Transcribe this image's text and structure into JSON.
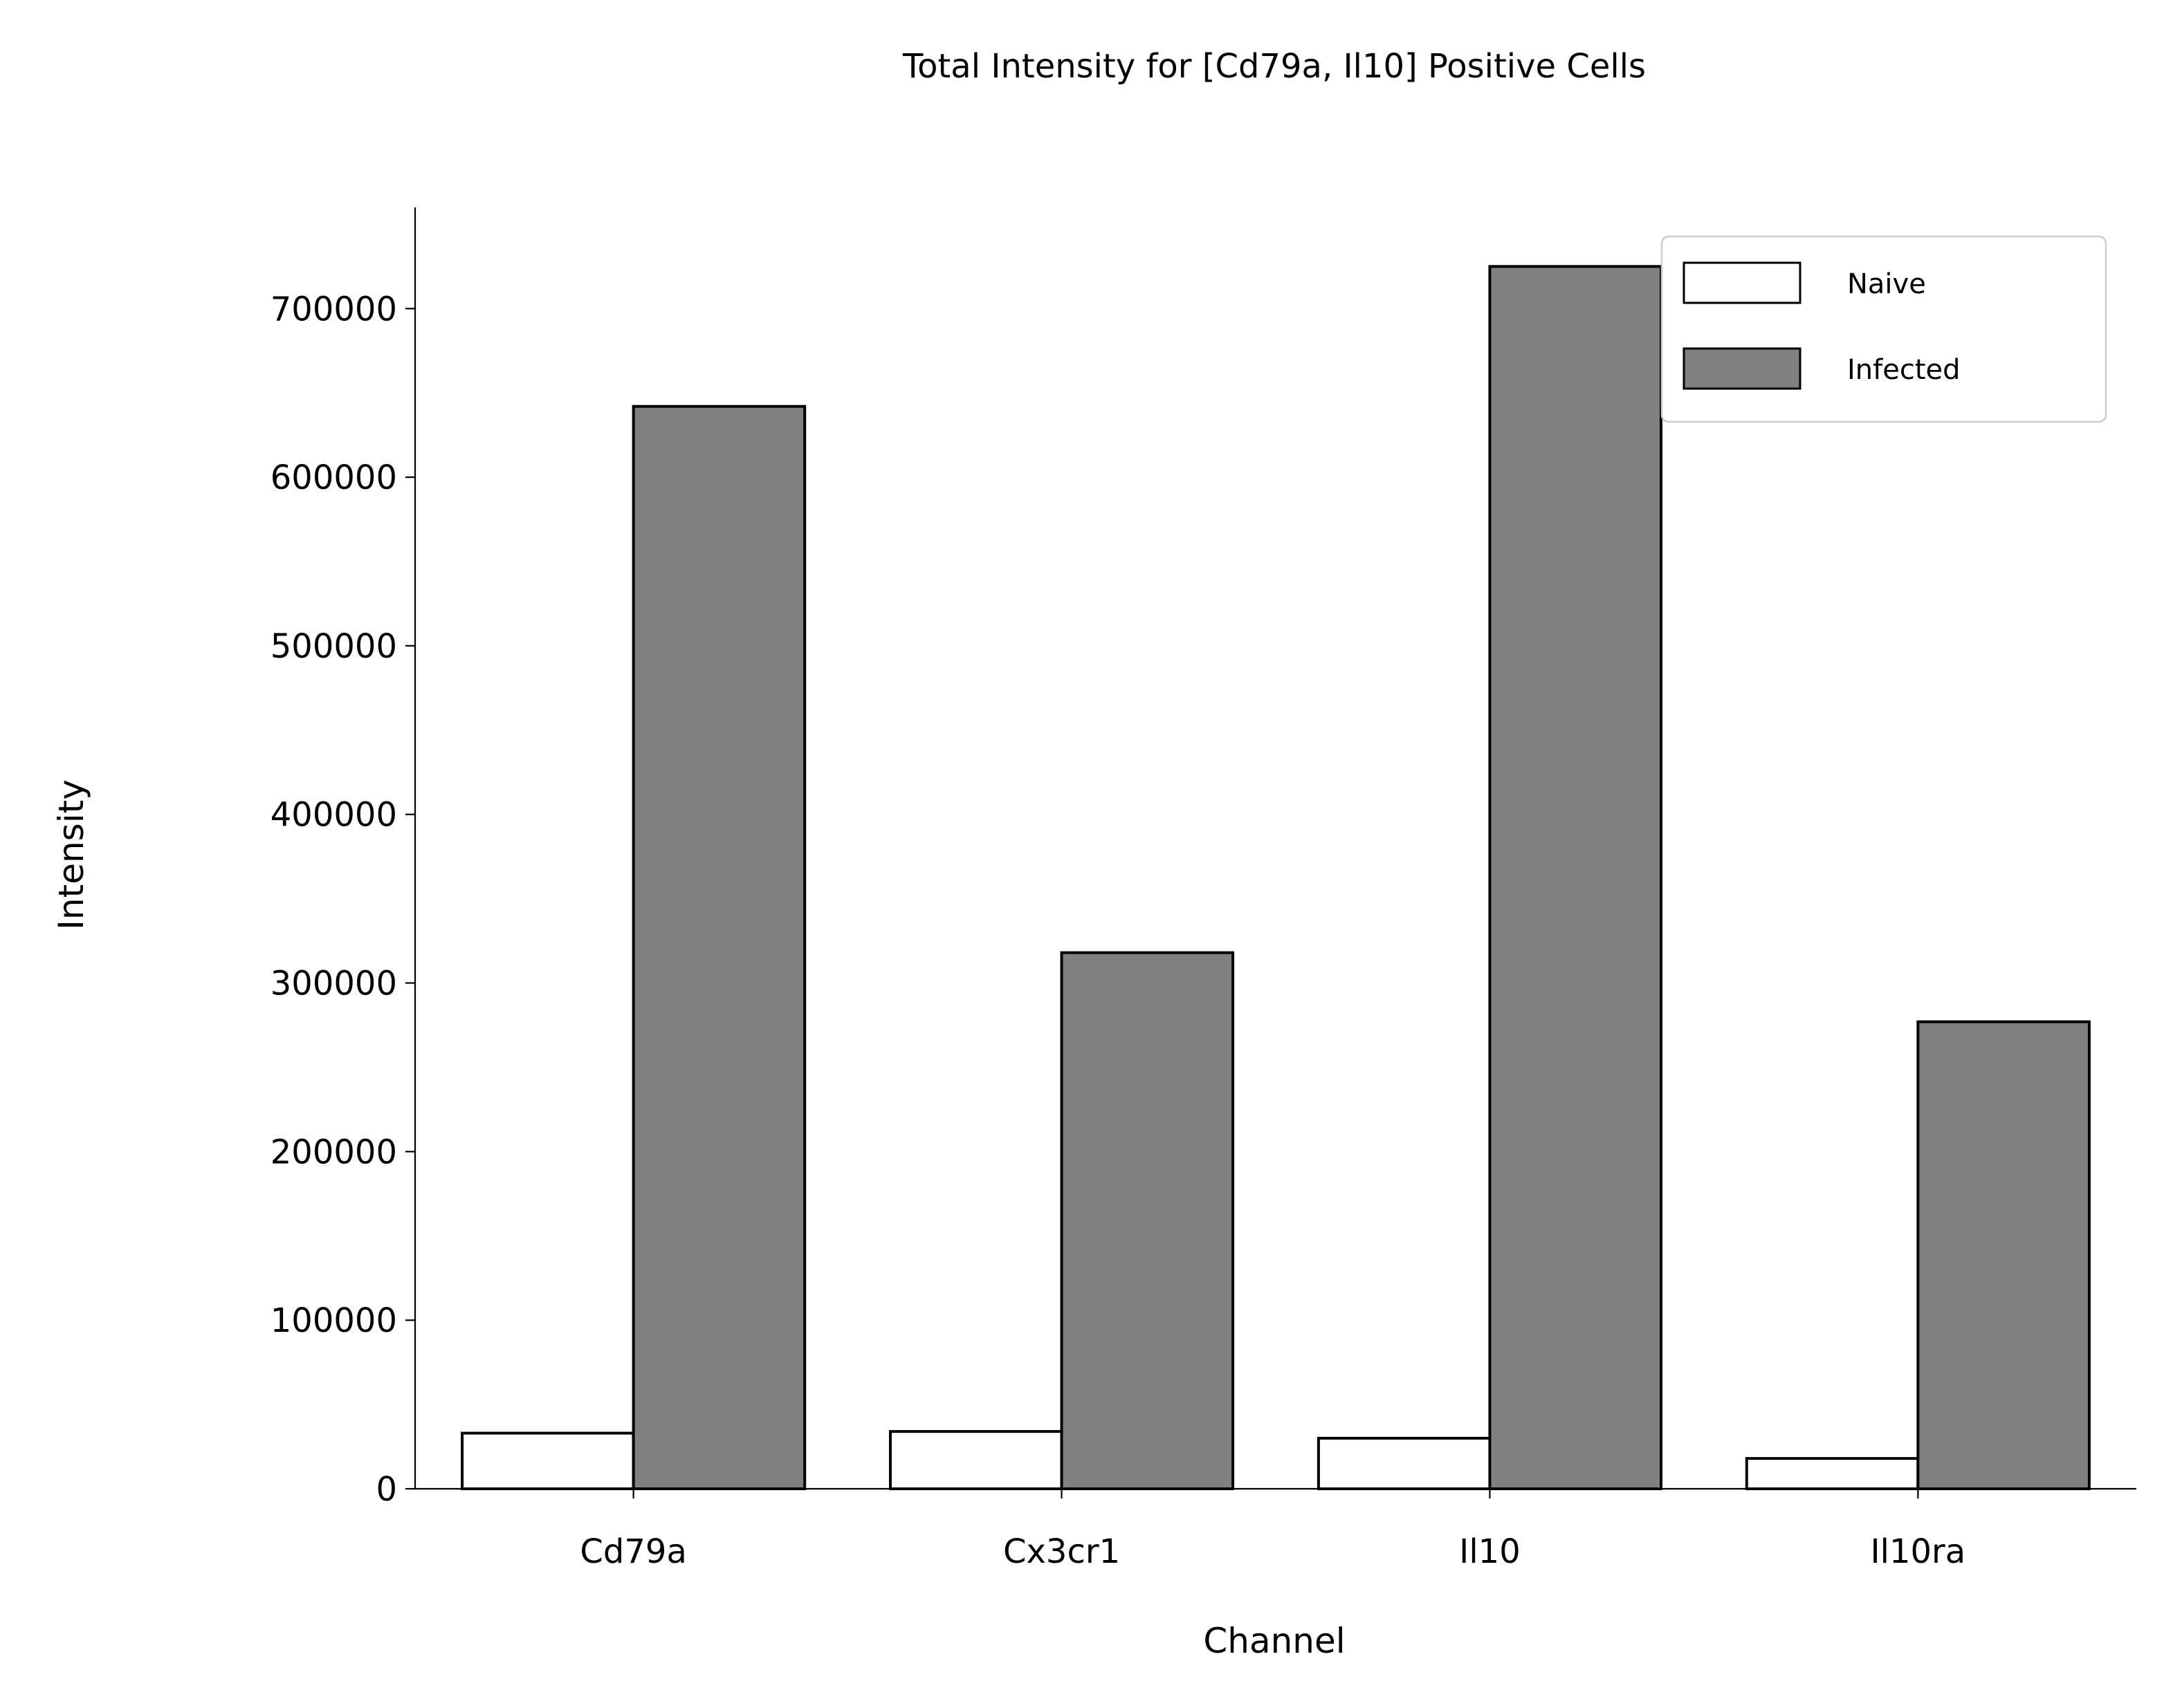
{
  "chart_data": {
    "type": "bar",
    "title": "Total Intensity for [Cd79a, Il10] Positive Cells",
    "xlabel": "Channel",
    "ylabel": "Intensity",
    "categories": [
      "Cd79a",
      "Cx3cr1",
      "Il10",
      "Il10ra"
    ],
    "series": [
      {
        "name": "Naive",
        "values": [
          33000,
          34000,
          30000,
          18000
        ],
        "color": "#ffffff"
      },
      {
        "name": "Infected",
        "values": [
          642000,
          318000,
          725000,
          277000
        ],
        "color": "#808080"
      }
    ],
    "edge_color": "#000000",
    "ylim": [
      0,
      760000
    ],
    "yticks": [
      0,
      100000,
      200000,
      300000,
      400000,
      500000,
      600000,
      700000
    ],
    "ytick_labels": [
      "0",
      "100000",
      "200000",
      "300000",
      "400000",
      "500000",
      "600000",
      "700000"
    ],
    "grid": false,
    "legend_position": "top-right"
  }
}
